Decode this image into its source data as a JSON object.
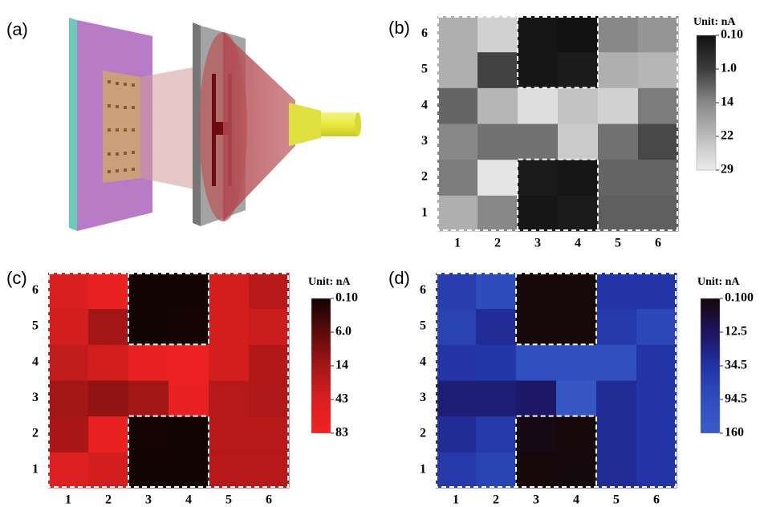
{
  "panel_a": {
    "label": "(a)"
  },
  "chart_data": [
    {
      "type": "heatmap",
      "panel_label": "(b)",
      "colorbar_title": "Unit: nA",
      "x_categories": [
        "1",
        "2",
        "3",
        "4",
        "5",
        "6"
      ],
      "y_categories": [
        "1",
        "2",
        "3",
        "4",
        "5",
        "6"
      ],
      "values": [
        [
          20,
          14,
          0.2,
          0.3,
          7,
          7
        ],
        [
          12,
          28,
          0.3,
          0.2,
          8,
          8
        ],
        [
          14,
          10,
          10,
          24,
          10,
          3
        ],
        [
          8,
          21,
          27,
          23,
          25,
          12
        ],
        [
          20,
          2,
          0.2,
          0.3,
          20,
          21
        ],
        [
          20,
          25,
          0.2,
          0.1,
          14,
          16
        ]
      ],
      "colorbar_ticks": [
        {
          "value": 0.1,
          "label": "0.10"
        },
        {
          "value": 1,
          "label": "1.0"
        },
        14,
        22,
        29
      ],
      "colorbar_colors": [
        "#111111",
        "#3c3c3c",
        "#888888",
        "#bcbcbc",
        "#ececec"
      ]
    },
    {
      "type": "heatmap",
      "panel_label": "(c)",
      "colorbar_title": "Unit: nA",
      "x_categories": [
        "1",
        "2",
        "3",
        "4",
        "5",
        "6"
      ],
      "y_categories": [
        "1",
        "2",
        "3",
        "4",
        "5",
        "6"
      ],
      "values": [
        [
          50,
          40,
          0.2,
          0.2,
          25,
          25
        ],
        [
          18,
          70,
          0.3,
          0.2,
          25,
          25
        ],
        [
          14,
          12,
          14,
          70,
          25,
          20
        ],
        [
          30,
          40,
          70,
          75,
          40,
          22
        ],
        [
          40,
          14,
          0.2,
          0.3,
          40,
          35
        ],
        [
          45,
          70,
          0.2,
          0.2,
          40,
          25
        ]
      ],
      "colorbar_ticks": [
        {
          "value": 0.1,
          "label": "0.10"
        },
        {
          "value": 6,
          "label": "6.0"
        },
        14,
        43,
        83
      ],
      "colorbar_colors": [
        "#120404",
        "#5c0a0a",
        "#a31616",
        "#d91f1f",
        "#f22222"
      ]
    },
    {
      "type": "heatmap",
      "panel_label": "(d)",
      "colorbar_title": "Unit: nA",
      "x_categories": [
        "1",
        "2",
        "3",
        "4",
        "5",
        "6"
      ],
      "y_categories": [
        "1",
        "2",
        "3",
        "4",
        "5",
        "6"
      ],
      "values": [
        [
          50,
          70,
          0.2,
          1,
          30,
          40
        ],
        [
          30,
          50,
          2,
          0.5,
          30,
          40
        ],
        [
          20,
          20,
          15,
          130,
          30,
          40
        ],
        [
          40,
          45,
          100,
          100,
          100,
          40
        ],
        [
          70,
          30,
          0.1,
          0.1,
          50,
          80
        ],
        [
          60,
          90,
          0.1,
          0.1,
          40,
          40
        ]
      ],
      "colorbar_ticks": [
        {
          "value": 0.1,
          "label": "0.100"
        },
        12.5,
        34.5,
        94.5,
        160
      ],
      "colorbar_colors": [
        "#160808",
        "#1c1460",
        "#2232a4",
        "#2f4ebe",
        "#3a5cc8"
      ]
    }
  ]
}
